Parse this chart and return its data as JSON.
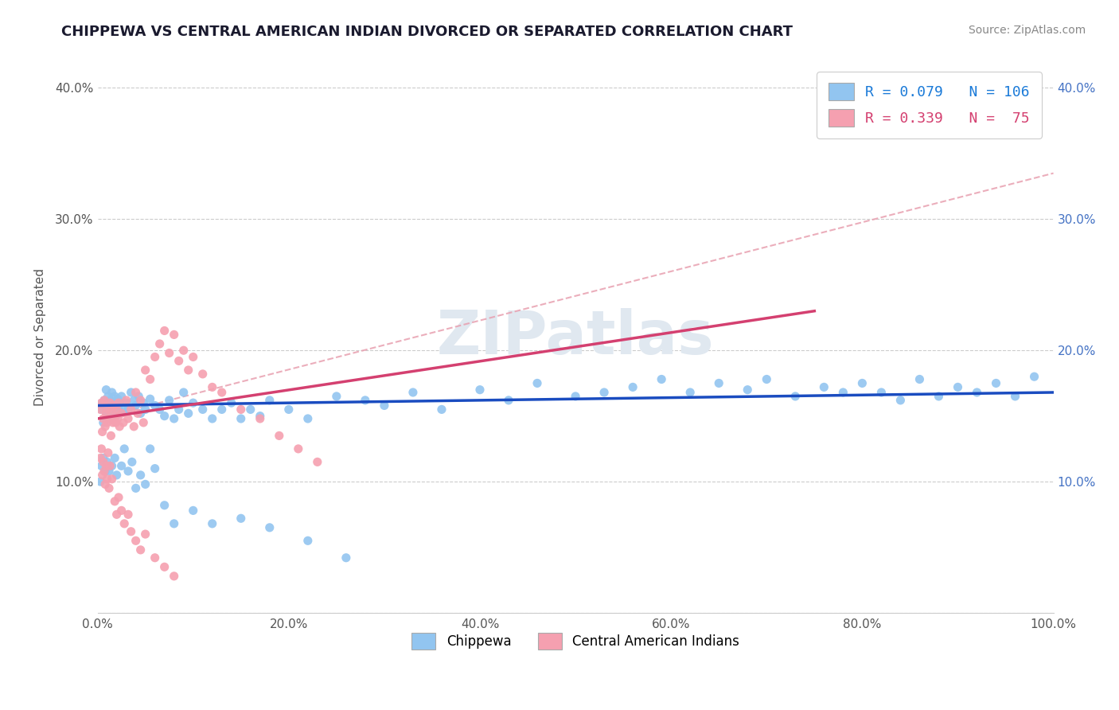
{
  "title": "CHIPPEWA VS CENTRAL AMERICAN INDIAN DIVORCED OR SEPARATED CORRELATION CHART",
  "source": "Source: ZipAtlas.com",
  "ylabel": "Divorced or Separated",
  "xlim": [
    0.0,
    1.0
  ],
  "ylim": [
    0.0,
    0.42
  ],
  "xticks": [
    0.0,
    0.2,
    0.4,
    0.6,
    0.8,
    1.0
  ],
  "yticks": [
    0.0,
    0.1,
    0.2,
    0.3,
    0.4
  ],
  "legend1_label": "R = 0.079   N = 106",
  "legend2_label": "R = 0.339   N =  75",
  "legend_bottom": "Chippewa",
  "legend_bottom2": "Central American Indians",
  "blue_color": "#92C5F0",
  "pink_color": "#F5A0B0",
  "blue_line_color": "#1a4cc0",
  "pink_line_color": "#d44070",
  "dashed_line_color": "#e8a0b0",
  "background_color": "#ffffff",
  "watermark": "ZIPatlas",
  "chippewa_x": [
    0.004,
    0.005,
    0.006,
    0.007,
    0.008,
    0.009,
    0.01,
    0.011,
    0.012,
    0.013,
    0.014,
    0.015,
    0.016,
    0.017,
    0.018,
    0.019,
    0.02,
    0.021,
    0.022,
    0.023,
    0.025,
    0.027,
    0.03,
    0.032,
    0.035,
    0.038,
    0.04,
    0.043,
    0.045,
    0.048,
    0.05,
    0.055,
    0.06,
    0.065,
    0.07,
    0.075,
    0.08,
    0.085,
    0.09,
    0.095,
    0.1,
    0.11,
    0.12,
    0.13,
    0.14,
    0.15,
    0.16,
    0.17,
    0.18,
    0.2,
    0.22,
    0.25,
    0.28,
    0.3,
    0.33,
    0.36,
    0.4,
    0.43,
    0.46,
    0.5,
    0.53,
    0.56,
    0.59,
    0.62,
    0.65,
    0.68,
    0.7,
    0.73,
    0.76,
    0.78,
    0.8,
    0.82,
    0.84,
    0.86,
    0.88,
    0.9,
    0.92,
    0.94,
    0.96,
    0.98,
    0.003,
    0.004,
    0.006,
    0.008,
    0.01,
    0.012,
    0.015,
    0.018,
    0.02,
    0.025,
    0.028,
    0.032,
    0.036,
    0.04,
    0.045,
    0.05,
    0.055,
    0.06,
    0.07,
    0.08,
    0.1,
    0.12,
    0.15,
    0.18,
    0.22,
    0.26
  ],
  "chippewa_y": [
    0.155,
    0.16,
    0.145,
    0.162,
    0.158,
    0.17,
    0.152,
    0.165,
    0.148,
    0.162,
    0.155,
    0.168,
    0.16,
    0.155,
    0.165,
    0.15,
    0.158,
    0.163,
    0.155,
    0.16,
    0.165,
    0.155,
    0.16,
    0.155,
    0.168,
    0.162,
    0.158,
    0.165,
    0.152,
    0.16,
    0.155,
    0.163,
    0.158,
    0.155,
    0.15,
    0.162,
    0.148,
    0.155,
    0.168,
    0.152,
    0.16,
    0.155,
    0.148,
    0.155,
    0.16,
    0.148,
    0.155,
    0.15,
    0.162,
    0.155,
    0.148,
    0.165,
    0.162,
    0.158,
    0.168,
    0.155,
    0.17,
    0.162,
    0.175,
    0.165,
    0.168,
    0.172,
    0.178,
    0.168,
    0.175,
    0.17,
    0.178,
    0.165,
    0.172,
    0.168,
    0.175,
    0.168,
    0.162,
    0.178,
    0.165,
    0.172,
    0.168,
    0.175,
    0.165,
    0.18,
    0.1,
    0.112,
    0.118,
    0.108,
    0.115,
    0.108,
    0.112,
    0.118,
    0.105,
    0.112,
    0.125,
    0.108,
    0.115,
    0.095,
    0.105,
    0.098,
    0.125,
    0.11,
    0.082,
    0.068,
    0.078,
    0.068,
    0.072,
    0.065,
    0.055,
    0.042
  ],
  "central_x": [
    0.003,
    0.004,
    0.005,
    0.006,
    0.007,
    0.008,
    0.009,
    0.01,
    0.011,
    0.012,
    0.013,
    0.014,
    0.015,
    0.016,
    0.017,
    0.018,
    0.019,
    0.02,
    0.021,
    0.022,
    0.023,
    0.025,
    0.027,
    0.03,
    0.032,
    0.035,
    0.038,
    0.04,
    0.042,
    0.045,
    0.048,
    0.05,
    0.055,
    0.06,
    0.065,
    0.07,
    0.075,
    0.08,
    0.085,
    0.09,
    0.095,
    0.1,
    0.11,
    0.12,
    0.13,
    0.15,
    0.17,
    0.19,
    0.21,
    0.23,
    0.003,
    0.004,
    0.005,
    0.006,
    0.007,
    0.008,
    0.009,
    0.01,
    0.011,
    0.012,
    0.013,
    0.015,
    0.018,
    0.02,
    0.022,
    0.025,
    0.028,
    0.032,
    0.035,
    0.04,
    0.045,
    0.05,
    0.06,
    0.07,
    0.08
  ],
  "central_y": [
    0.155,
    0.16,
    0.138,
    0.148,
    0.162,
    0.142,
    0.152,
    0.145,
    0.155,
    0.148,
    0.16,
    0.135,
    0.155,
    0.145,
    0.158,
    0.15,
    0.145,
    0.155,
    0.148,
    0.16,
    0.142,
    0.152,
    0.145,
    0.162,
    0.148,
    0.155,
    0.142,
    0.168,
    0.152,
    0.162,
    0.145,
    0.185,
    0.178,
    0.195,
    0.205,
    0.215,
    0.198,
    0.212,
    0.192,
    0.2,
    0.185,
    0.195,
    0.182,
    0.172,
    0.168,
    0.155,
    0.148,
    0.135,
    0.125,
    0.115,
    0.118,
    0.125,
    0.105,
    0.115,
    0.108,
    0.098,
    0.112,
    0.102,
    0.122,
    0.095,
    0.112,
    0.102,
    0.085,
    0.075,
    0.088,
    0.078,
    0.068,
    0.075,
    0.062,
    0.055,
    0.048,
    0.06,
    0.042,
    0.035,
    0.028
  ],
  "blue_trendline": [
    0.158,
    0.168
  ],
  "pink_trendline_x": [
    0.0,
    0.75
  ],
  "pink_trendline_y": [
    0.148,
    0.23
  ],
  "dashed_line_x": [
    0.0,
    1.0
  ],
  "dashed_line_y": [
    0.148,
    0.335
  ]
}
